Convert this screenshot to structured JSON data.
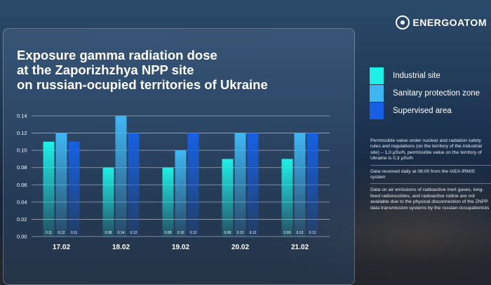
{
  "brand": {
    "name": "ENERGOATOM"
  },
  "colors": {
    "industrial_site": "#1ff0e6",
    "sanitary_zone": "#3fb6f2",
    "supervised_area": "#1560e4"
  },
  "legend": [
    {
      "label": "Industrial site",
      "color": "#1ff0e6"
    },
    {
      "label": "Sanitary protection zone",
      "color": "#3fb6f2"
    },
    {
      "label": "Supervised area",
      "color": "#1560e4"
    }
  ],
  "notes": [
    "Permissible value under nuclear and radiation safety rules and regulations (on the territory of the industrial site) – 1,0 μSv/h, permissible value on the territory of Ukraine is 0,3 μSv/h",
    "Data received daily at 08:00 from the IAEA IRMIS system",
    "Data on air emissions of radioactive inert gases, long-lived radionuclides, and radioactive iodine are not available due to the physical disconnection of the ZNPP data transmission systems by the russian occupationists"
  ],
  "chart_data": {
    "type": "bar",
    "title": "Exposure gamma radiation dose at the Zaporizhzhya NPP site on russian-ocupied territories of Ukraine",
    "title_lines": [
      "Exposure gamma radiation dose",
      "at the Zaporizhzhya NPP site",
      "on russian-ocupied territories of Ukraine"
    ],
    "categories": [
      "17.02",
      "18.02",
      "19.02",
      "20.02",
      "21.02"
    ],
    "series": [
      {
        "name": "Industrial site",
        "values": [
          0.11,
          0.08,
          0.08,
          0.09,
          0.09
        ],
        "labels": [
          "0.11",
          "0.08",
          "0.08",
          "0.09",
          "0.09"
        ]
      },
      {
        "name": "Sanitary protection zone",
        "values": [
          0.12,
          0.14,
          0.1,
          0.12,
          0.12
        ],
        "labels": [
          "0.12",
          "0.14",
          "0.10",
          "0.12",
          "0.12"
        ]
      },
      {
        "name": "Supervised area",
        "values": [
          0.11,
          0.12,
          0.12,
          0.12,
          0.12
        ],
        "labels": [
          "0.11",
          "0.12",
          "0.12",
          "0.12",
          "0.12"
        ]
      }
    ],
    "yticks": [
      "0.00",
      "0.02",
      "0.04",
      "0.06",
      "0.08",
      "0.10",
      "0.12",
      "0.14"
    ],
    "ylim": [
      0,
      0.14
    ],
    "grid": true
  }
}
